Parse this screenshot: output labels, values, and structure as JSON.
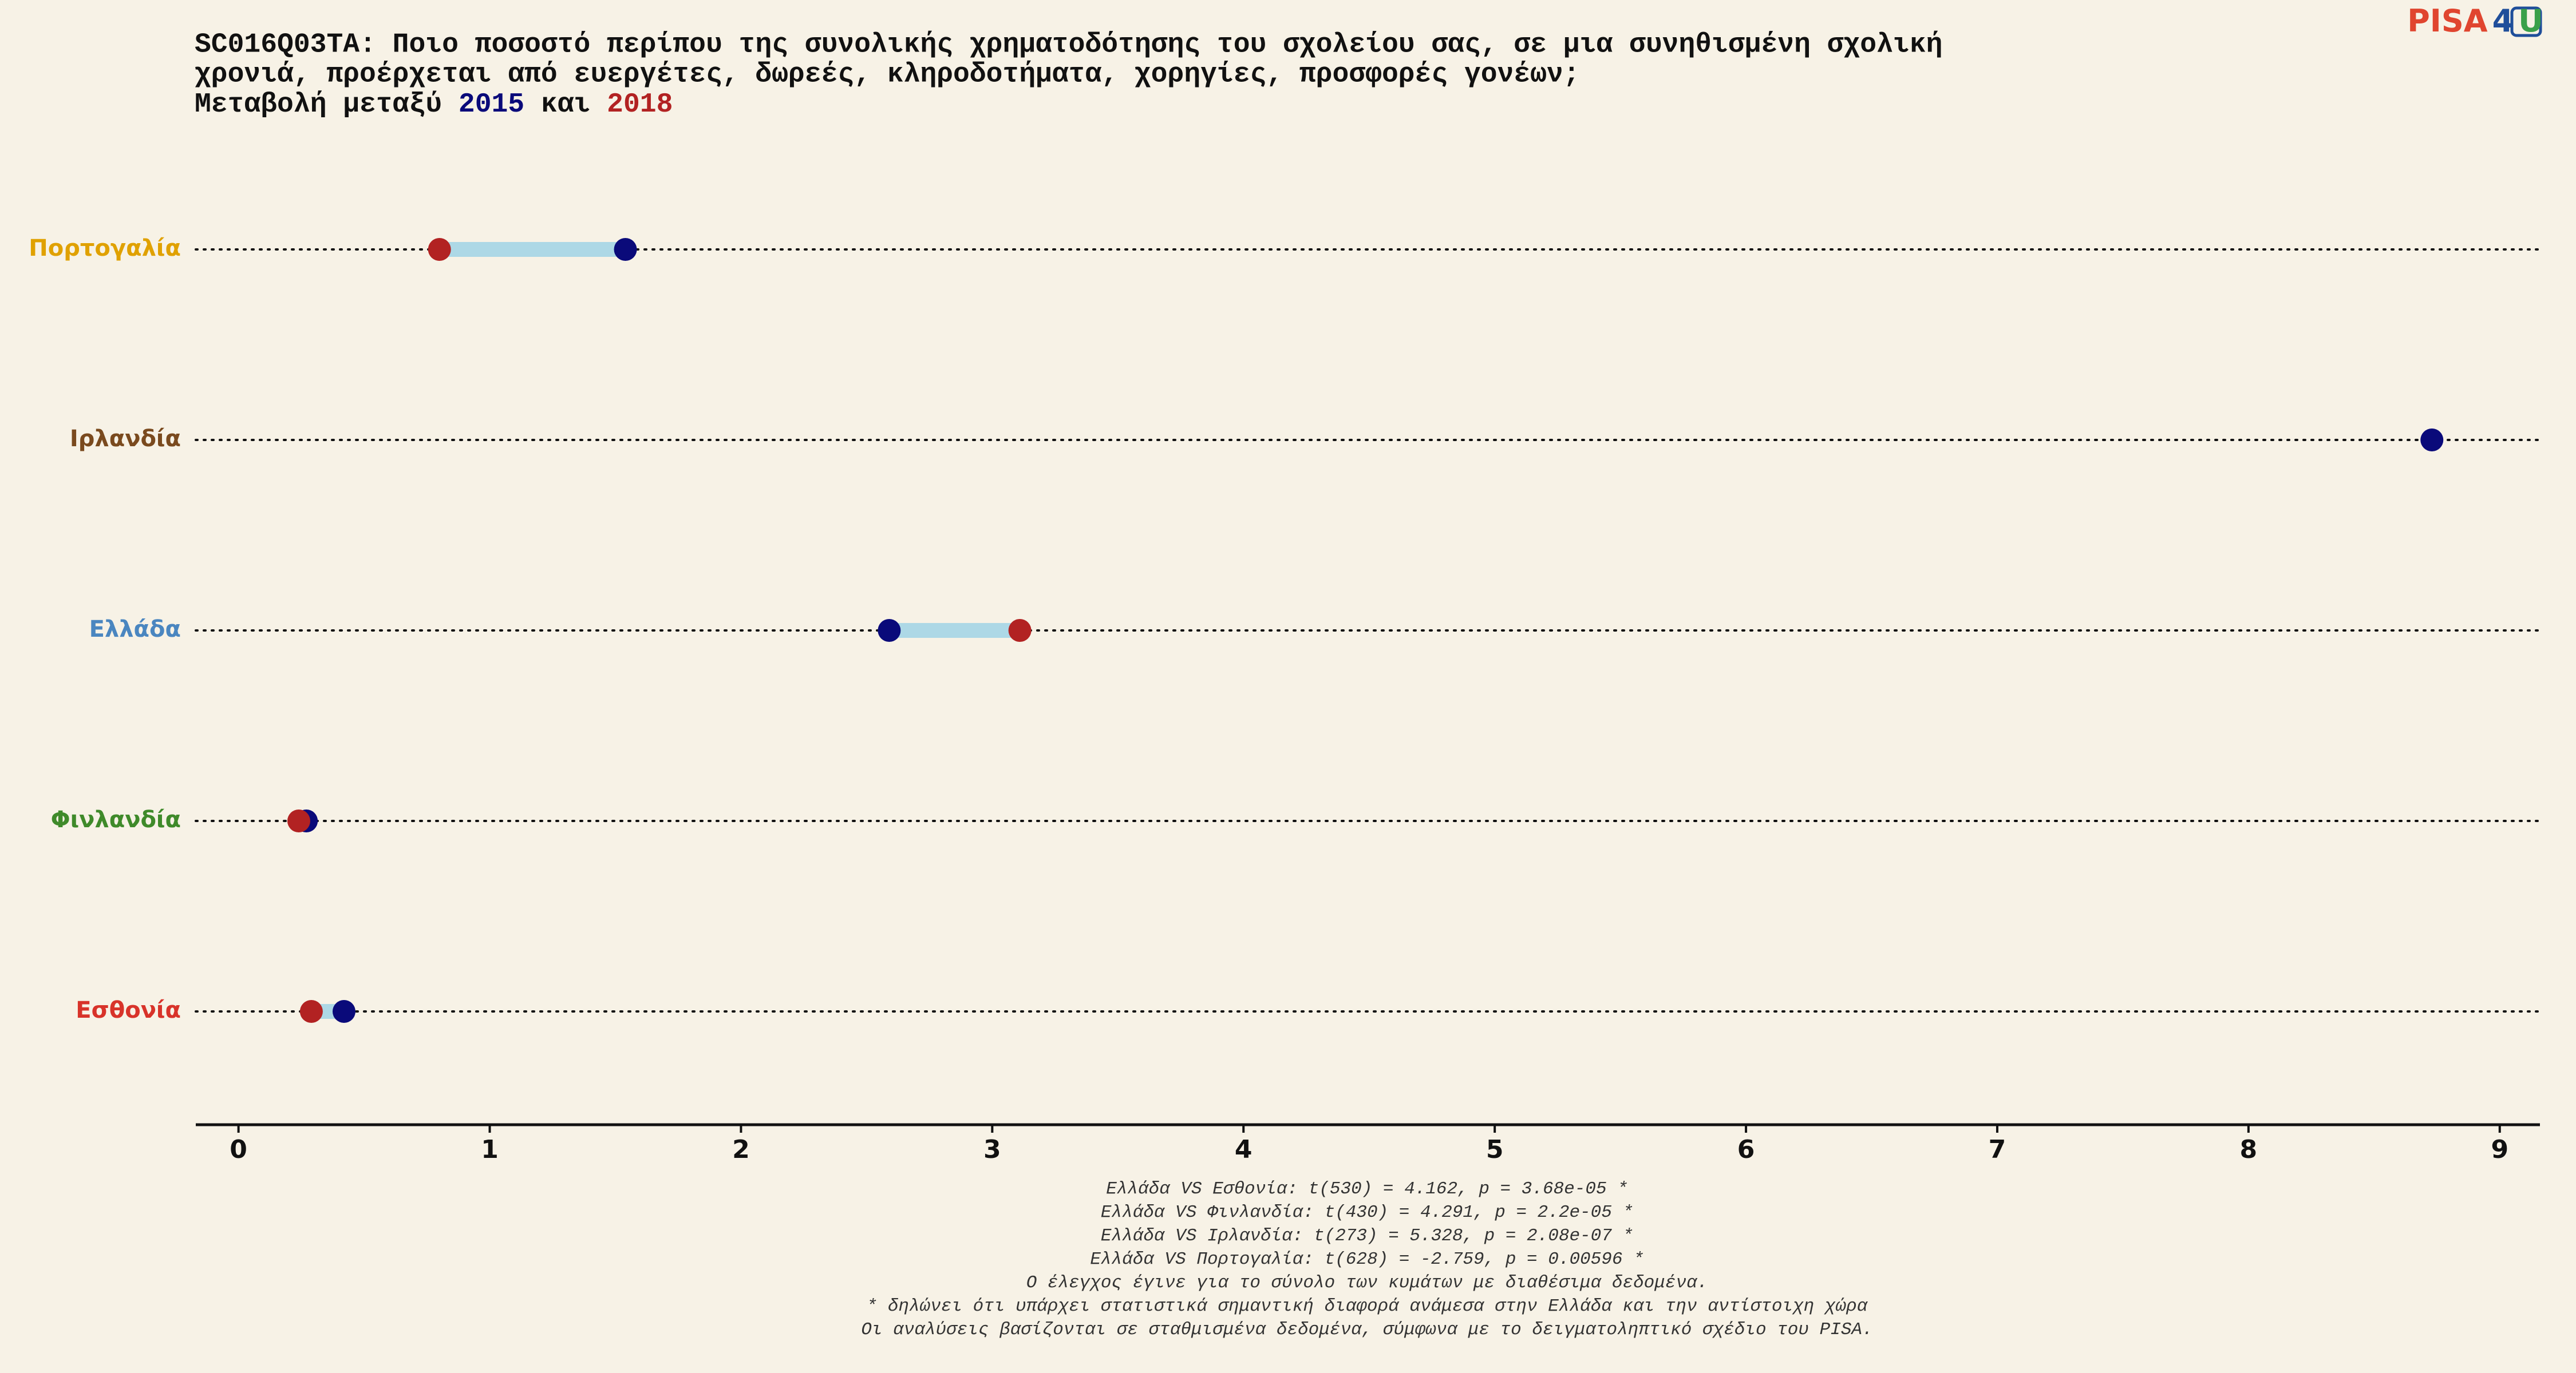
{
  "chart_data": {
    "type": "dumbbell",
    "title": [
      "SC016Q03TA: Ποιο ποσοστό περίπου της συνολικής χρηματοδότησης του σχολείου σας, σε μια συνηθισμένη σχολική",
      "χρονιά, προέρχεται από ευεργέτες, δωρεές, κληροδοτήματα, χορηγίες, προσφορές γονέων;"
    ],
    "subtitle_prefix": "Μεταβολή μεταξύ",
    "subtitle_joiner": "και",
    "categories": [
      "Πορτογαλία",
      "Ιρλανδία",
      "Ελλάδα",
      "Φινλανδία",
      "Εσθονία"
    ],
    "category_colors": [
      "#e0a100",
      "#7a4a1e",
      "#4a86c0",
      "#3f8a2a",
      "#d8332a"
    ],
    "series": [
      {
        "name": "2015",
        "color": "#0a0a7a",
        "values": [
          1.54,
          8.73,
          2.59,
          0.27,
          0.42
        ]
      },
      {
        "name": "2018",
        "color": "#b22222",
        "values": [
          0.8,
          null,
          3.11,
          0.24,
          0.29
        ]
      }
    ],
    "bar_color": "#add8e6",
    "xlim": [
      -0.17,
      9.16
    ],
    "xticks": [
      0,
      1,
      2,
      3,
      4,
      5,
      6,
      7,
      8,
      9
    ],
    "notes": [
      "Ελλάδα VS Εσθονία: t(530) = 4.162, p = 3.68e-05 *",
      "Ελλάδα VS Φινλανδία: t(430) = 4.291, p = 2.2e-05 *",
      "Ελλάδα VS Ιρλανδία: t(273) = 5.328, p = 2.08e-07 *",
      "Ελλάδα VS Πορτογαλία: t(628) = -2.759, p = 0.00596 *",
      "Ο έλεγχος έγινε για το σύνολο των κυμάτων με διαθέσιμα δεδομένα.",
      "* δηλώνει ότι υπάρχει στατιστικά σημαντική διαφορά ανάμεσα στην Ελλάδα και την αντίστοιχη χώρα",
      "Οι αναλύσεις βασίζονται σε σταθμισμένα δεδομένα, σύμφωνα με το δειγματοληπτικό σχέδιο του PISA."
    ],
    "logo": [
      "PISA",
      "4",
      "U"
    ]
  }
}
